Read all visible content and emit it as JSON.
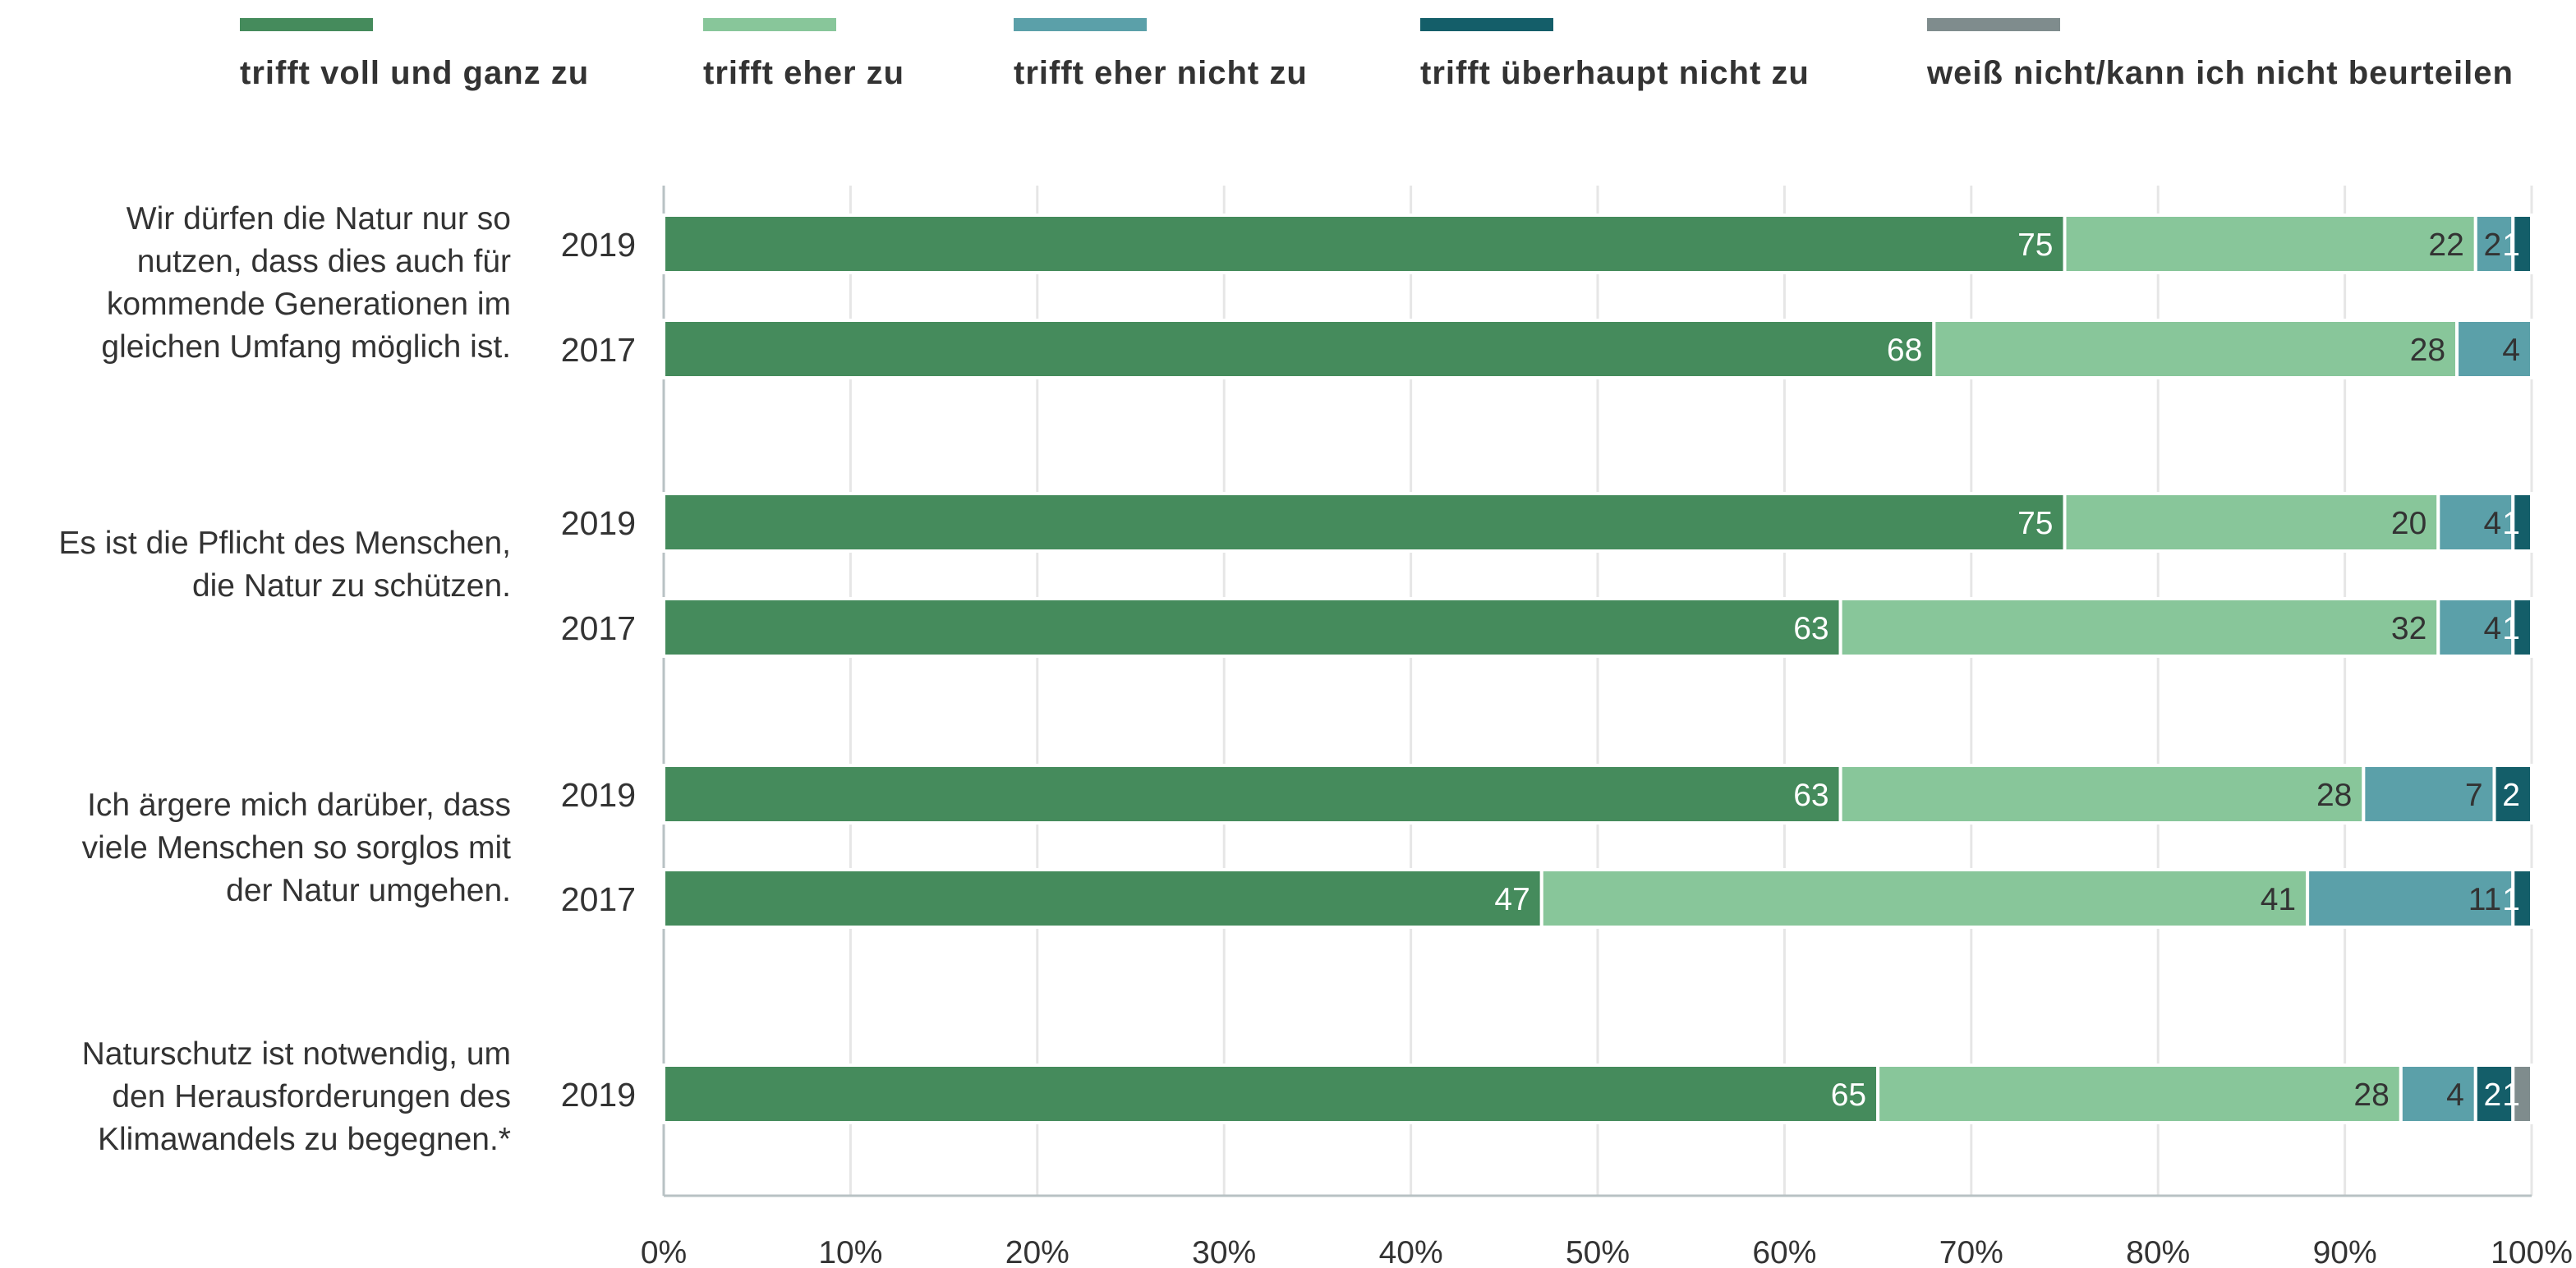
{
  "chart_data": {
    "type": "bar",
    "orientation": "horizontal",
    "stacked": true,
    "xlim": [
      0,
      100
    ],
    "x_ticks": [
      "0%",
      "10%",
      "20%",
      "30%",
      "40%",
      "50%",
      "60%",
      "70%",
      "80%",
      "90%",
      "100%"
    ],
    "grid": "vertical",
    "legend_position": "top",
    "legend": [
      {
        "name": "trifft voll und ganz zu",
        "color": "#458b5c"
      },
      {
        "name": "trifft eher zu",
        "color": "#88c69a"
      },
      {
        "name": "trifft eher nicht zu",
        "color": "#5ba0a9"
      },
      {
        "name": "trifft überhaupt nicht zu",
        "color": "#145e69"
      },
      {
        "name": "weiß nicht/kann ich nicht beurteilen",
        "color": "#7f8c8d"
      }
    ],
    "groups": [
      {
        "question_lines": [
          "Wir dürfen die Natur nur so",
          "nutzen, dass dies auch für",
          "kommende Generationen im",
          "gleichen Umfang möglich ist."
        ],
        "bars": [
          {
            "year": "2019",
            "values": [
              75,
              22,
              2,
              1,
              0
            ]
          },
          {
            "year": "2017",
            "values": [
              68,
              28,
              4,
              0,
              0
            ]
          }
        ]
      },
      {
        "question_lines": [
          "Es ist die Pflicht des Menschen,",
          "die Natur zu schützen."
        ],
        "bars": [
          {
            "year": "2019",
            "values": [
              75,
              20,
              4,
              1,
              0
            ]
          },
          {
            "year": "2017",
            "values": [
              63,
              32,
              4,
              1,
              0
            ]
          }
        ]
      },
      {
        "question_lines": [
          "Ich ärgere mich darüber, dass",
          "viele Menschen so sorglos mit",
          "der Natur umgehen."
        ],
        "bars": [
          {
            "year": "2019",
            "values": [
              63,
              28,
              7,
              2,
              0
            ]
          },
          {
            "year": "2017",
            "values": [
              47,
              41,
              11,
              1,
              0
            ]
          }
        ]
      },
      {
        "question_lines": [
          "Naturschutz ist notwendig, um",
          "den Herausforderungen des",
          "Klimawandels zu begegnen.*"
        ],
        "bars": [
          {
            "year": "2019",
            "values": [
              65,
              28,
              4,
              2,
              1
            ]
          }
        ]
      }
    ]
  }
}
